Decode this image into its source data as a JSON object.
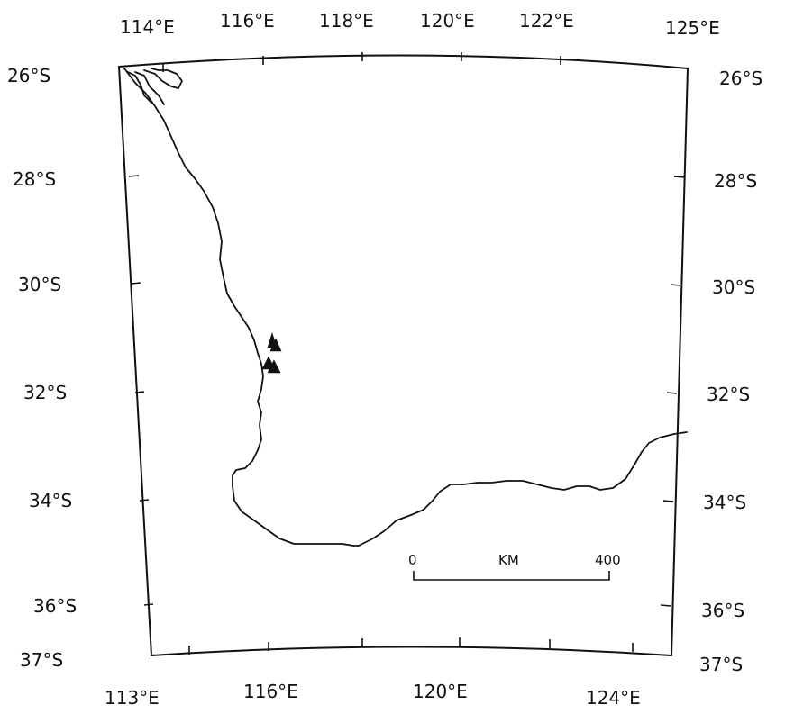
{
  "map": {
    "top_lon_labels": [
      "114°E",
      "116°E",
      "118°E",
      "120°E",
      "122°E",
      "125°E"
    ],
    "bottom_lon_labels": [
      "113°E",
      "116°E",
      "120°E",
      "124°E"
    ],
    "left_lat_labels": [
      "26°S",
      "28°S",
      "30°S",
      "32°S",
      "34°S",
      "36°S",
      "37°S"
    ],
    "right_lat_labels": [
      "26°S",
      "28°S",
      "30°S",
      "32°S",
      "34°S",
      "36°S",
      "37°S"
    ],
    "scale_bar": {
      "start_label": "0",
      "unit_label": "KM",
      "end_label": "400"
    },
    "markers": [
      {
        "symbol": "triangle"
      },
      {
        "symbol": "triangle"
      },
      {
        "symbol": "triangle"
      },
      {
        "symbol": "triangle"
      }
    ],
    "colors": {
      "land_line": "#111111",
      "background": "#ffffff"
    }
  }
}
